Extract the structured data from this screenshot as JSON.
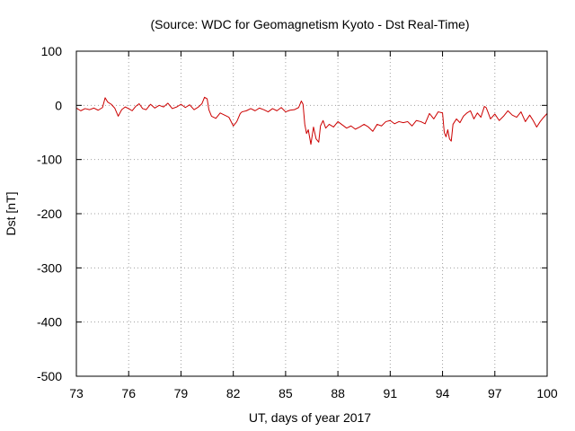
{
  "chart_data": {
    "type": "line",
    "title": "(Source: WDC for Geomagnetism Kyoto - Dst Real-Time)",
    "xlabel": "UT, days of year 2017",
    "ylabel": "Dst [nT]",
    "xlim": [
      73,
      100
    ],
    "ylim": [
      -500,
      100
    ],
    "xticks": [
      73,
      76,
      79,
      82,
      85,
      88,
      91,
      94,
      97,
      100
    ],
    "yticks": [
      100,
      0,
      -100,
      -200,
      -300,
      -400,
      -500
    ],
    "grid": true,
    "series": [
      {
        "color": "#cc0000",
        "x": [
          73.0,
          73.25,
          73.5,
          73.75,
          74.0,
          74.25,
          74.5,
          74.65,
          74.8,
          75.0,
          75.2,
          75.4,
          75.6,
          75.8,
          76.0,
          76.2,
          76.4,
          76.6,
          76.8,
          77.0,
          77.25,
          77.5,
          77.75,
          78.0,
          78.25,
          78.5,
          78.75,
          79.0,
          79.25,
          79.5,
          79.75,
          80.0,
          80.2,
          80.35,
          80.5,
          80.6,
          80.75,
          81.0,
          81.25,
          81.5,
          81.75,
          82.0,
          82.2,
          82.4,
          82.5,
          82.75,
          83.0,
          83.25,
          83.5,
          83.75,
          84.0,
          84.25,
          84.5,
          84.75,
          85.0,
          85.25,
          85.5,
          85.75,
          85.9,
          86.0,
          86.1,
          86.2,
          86.3,
          86.45,
          86.6,
          86.75,
          86.9,
          87.0,
          87.15,
          87.3,
          87.5,
          87.75,
          88.0,
          88.25,
          88.5,
          88.75,
          89.0,
          89.25,
          89.5,
          89.75,
          90.0,
          90.25,
          90.5,
          90.75,
          91.0,
          91.25,
          91.5,
          91.75,
          92.0,
          92.25,
          92.5,
          92.75,
          93.0,
          93.25,
          93.5,
          93.75,
          94.0,
          94.1,
          94.2,
          94.3,
          94.4,
          94.5,
          94.6,
          94.8,
          95.0,
          95.2,
          95.4,
          95.6,
          95.8,
          96.0,
          96.2,
          96.4,
          96.5,
          96.6,
          96.75,
          97.0,
          97.25,
          97.5,
          97.75,
          98.0,
          98.25,
          98.5,
          98.75,
          99.0,
          99.2,
          99.4,
          99.6,
          99.8,
          100.0
        ],
        "y": [
          -5,
          -10,
          -6,
          -8,
          -5,
          -9,
          -4,
          14,
          6,
          2,
          -5,
          -20,
          -8,
          -3,
          -6,
          -10,
          -2,
          3,
          -6,
          -8,
          2,
          -5,
          0,
          -3,
          4,
          -6,
          -3,
          2,
          -4,
          1,
          -8,
          -3,
          3,
          15,
          12,
          -8,
          -20,
          -24,
          -14,
          -18,
          -22,
          -38,
          -30,
          -15,
          -12,
          -10,
          -6,
          -10,
          -5,
          -8,
          -12,
          -6,
          -10,
          -4,
          -12,
          -9,
          -8,
          -4,
          8,
          2,
          -35,
          -52,
          -45,
          -72,
          -40,
          -62,
          -68,
          -38,
          -28,
          -42,
          -35,
          -40,
          -30,
          -36,
          -42,
          -38,
          -44,
          -40,
          -35,
          -40,
          -48,
          -35,
          -38,
          -30,
          -28,
          -34,
          -30,
          -32,
          -30,
          -38,
          -28,
          -30,
          -34,
          -15,
          -25,
          -12,
          -14,
          -50,
          -58,
          -45,
          -62,
          -66,
          -35,
          -25,
          -32,
          -20,
          -14,
          -10,
          -25,
          -14,
          -22,
          -2,
          -4,
          -12,
          -25,
          -16,
          -28,
          -20,
          -10,
          -18,
          -22,
          -12,
          -30,
          -18,
          -28,
          -40,
          -30,
          -22,
          -15
        ]
      }
    ]
  }
}
